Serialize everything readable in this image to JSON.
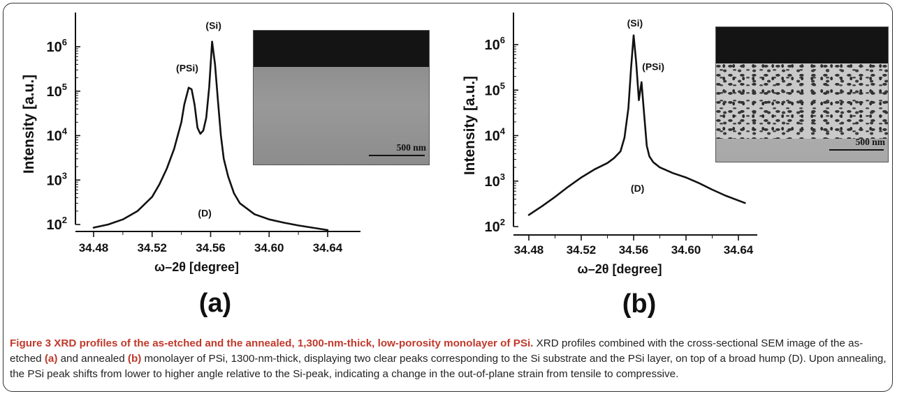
{
  "colors": {
    "frame": "#333333",
    "curve": "#111111",
    "accent_bold": "#c0392b",
    "text": "#222222"
  },
  "chart_data": [
    {
      "type": "line",
      "panel_label": "(a)",
      "xlabel": "ω–2θ [degree]",
      "ylabel": "Intensity [a.u.]",
      "yscale": "log",
      "xlim": [
        34.465,
        34.66
      ],
      "ylim": [
        60,
        3000000
      ],
      "xticks": [
        "34.48",
        "34.52",
        "34.56",
        "34.60",
        "34.64"
      ],
      "yticks": [
        {
          "base": "10",
          "exp": "2"
        },
        {
          "base": "10",
          "exp": "3"
        },
        {
          "base": "10",
          "exp": "4"
        },
        {
          "base": "10",
          "exp": "5"
        },
        {
          "base": "10",
          "exp": "6"
        }
      ],
      "annotations": [
        {
          "text": "(Si)",
          "x": 34.562,
          "y": 3000000
        },
        {
          "text": "(PSi)",
          "x": 34.544,
          "y": 330000
        },
        {
          "text": "(D)",
          "x": 34.556,
          "y": 180
        }
      ],
      "series": [
        {
          "x": [
            34.48,
            34.49,
            34.5,
            34.51,
            34.52,
            34.525,
            34.53,
            34.535,
            34.54,
            34.542,
            34.545,
            34.547,
            34.549,
            34.551,
            34.553,
            34.555,
            34.557,
            34.559,
            34.561,
            34.563,
            34.565,
            34.567,
            34.569,
            34.572,
            34.576,
            34.58,
            34.59,
            34.6,
            34.61,
            34.62,
            34.64
          ],
          "y": [
            85,
            100,
            130,
            200,
            420,
            800,
            1800,
            5000,
            20000,
            50000,
            120000,
            110000,
            50000,
            15000,
            11000,
            13000,
            25000,
            120000,
            1300000,
            400000,
            60000,
            10000,
            3000,
            1200,
            500,
            300,
            170,
            130,
            110,
            95,
            75
          ]
        }
      ]
    },
    {
      "type": "line",
      "panel_label": "(b)",
      "xlabel": "ω–2θ [degree]",
      "ylabel": "Intensity [a.u.]",
      "yscale": "log",
      "xlim": [
        34.465,
        34.665
      ],
      "ylim": [
        60,
        3000000
      ],
      "xticks": [
        "34.48",
        "34.52",
        "34.56",
        "34.60",
        "34.64"
      ],
      "yticks": [
        {
          "base": "10",
          "exp": "2"
        },
        {
          "base": "10",
          "exp": "3"
        },
        {
          "base": "10",
          "exp": "4"
        },
        {
          "base": "10",
          "exp": "5"
        },
        {
          "base": "10",
          "exp": "6"
        }
      ],
      "annotations": [
        {
          "text": "(Si)",
          "x": 34.561,
          "y": 3000000
        },
        {
          "text": "(PSi)",
          "x": 34.575,
          "y": 330000
        },
        {
          "text": "(D)",
          "x": 34.563,
          "y": 700
        }
      ],
      "series": [
        {
          "x": [
            34.48,
            34.49,
            34.5,
            34.51,
            34.52,
            34.53,
            34.54,
            34.545,
            34.55,
            34.553,
            34.556,
            34.558,
            34.56,
            34.562,
            34.564,
            34.566,
            34.568,
            34.57,
            34.572,
            34.575,
            34.58,
            34.59,
            34.6,
            34.61,
            34.62,
            34.63,
            34.645
          ],
          "y": [
            180,
            280,
            450,
            750,
            1200,
            1800,
            2500,
            3200,
            4500,
            9000,
            40000,
            300000,
            1600000,
            400000,
            60000,
            150000,
            30000,
            6000,
            3500,
            2600,
            2000,
            1500,
            1200,
            900,
            650,
            480,
            330
          ]
        }
      ]
    }
  ],
  "sem_images": [
    {
      "scale_label": "500 nm"
    },
    {
      "scale_label": "500 nm"
    }
  ],
  "caption": {
    "title": "Figure 3 XRD profiles of the as-etched and the annealed, 1,300-nm-thick, low-porosity monolayer of PSi.",
    "text_1": " XRD profiles combined with the cross-sectional SEM image of the as-etched ",
    "bold_a": "(a)",
    "text_2": " and annealed ",
    "bold_b": "(b)",
    "text_3": " monolayer of PSi, 1300-nm-thick, displaying two clear peaks corresponding to the Si substrate and the PSi layer, on top of a broad hump (D). Upon annealing, the PSi peak shifts from lower to higher angle relative to the Si-peak, indicating a change in the out-of-plane strain from tensile to compressive."
  }
}
